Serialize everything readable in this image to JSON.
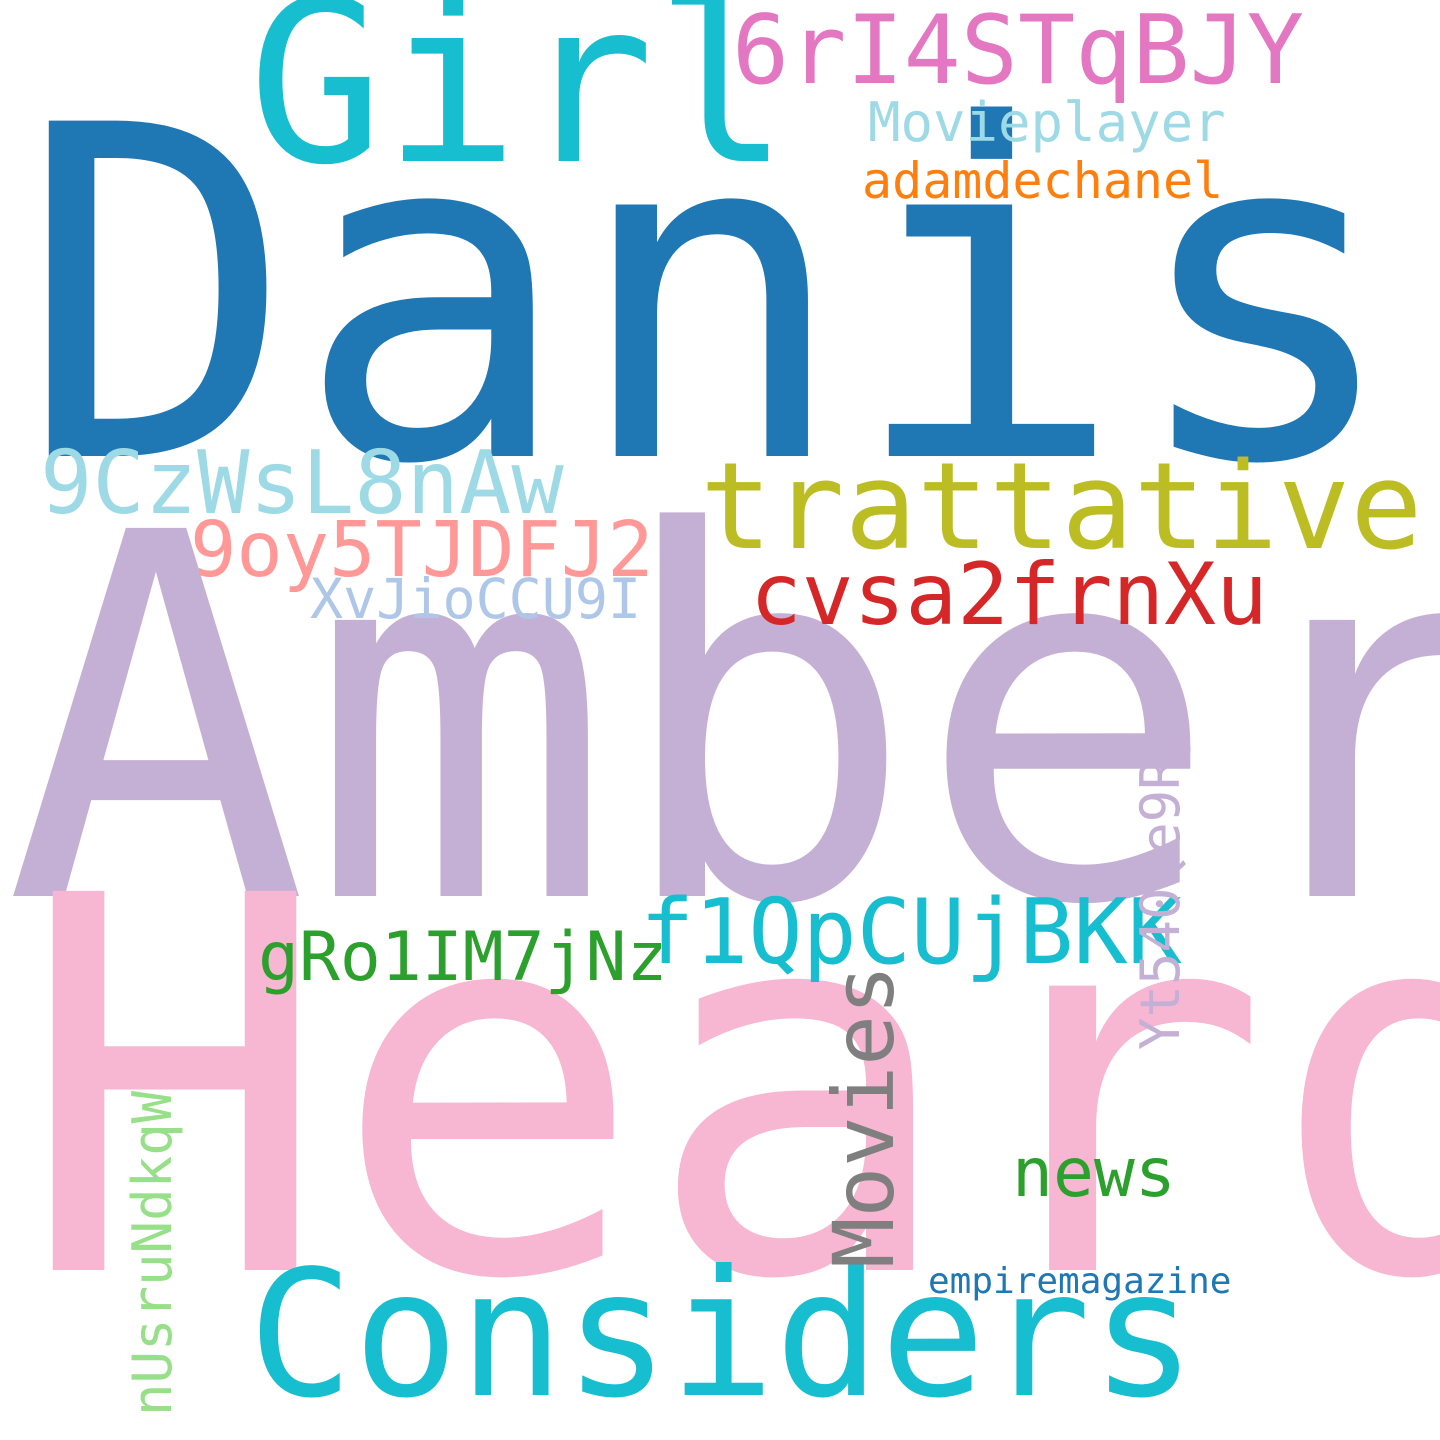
{
  "words": [
    {
      "id": "danish",
      "text": "Danish",
      "color": "#1f77b4"
    },
    {
      "id": "amber",
      "text": "Amber",
      "color": "#c5b0d5"
    },
    {
      "id": "heard",
      "text": "Heard",
      "color": "#f7b6d2"
    },
    {
      "id": "girl",
      "text": "Girl",
      "color": "#17becf"
    },
    {
      "id": "considers",
      "text": "Considers",
      "color": "#17becf"
    },
    {
      "id": "trattative",
      "text": "trattative",
      "color": "#bcbd22"
    },
    {
      "id": "6ri4stqbjy",
      "text": "6rI4STqBJY",
      "color": "#e377c2"
    },
    {
      "id": "movieplayer",
      "text": "Movieplayer",
      "color": "#9edae5"
    },
    {
      "id": "adamdechanel",
      "text": "adamdechanel",
      "color": "#ff7f0e"
    },
    {
      "id": "9czwsl8naw",
      "text": "9CzWsL8nAw",
      "color": "#9edae5"
    },
    {
      "id": "9oy5tjdfj2",
      "text": "9oy5TJDFJ2",
      "color": "#ff9896"
    },
    {
      "id": "cvsa2frnxu",
      "text": "cvsa2frnXu",
      "color": "#d62728"
    },
    {
      "id": "xvjioccu9i",
      "text": "XvJioCCU9I",
      "color": "#aec7e8"
    },
    {
      "id": "f1qpcujbkk",
      "text": "f1QpCUjBKK",
      "color": "#17becf"
    },
    {
      "id": "gro1im7jnz",
      "text": "gRo1IM7jNz",
      "color": "#2ca02c"
    },
    {
      "id": "movies",
      "text": "Movies",
      "color": "#7f7f7f"
    },
    {
      "id": "yt540qe9ry",
      "text": "Yt540Qe9Ry",
      "color": "#c5b0d5"
    },
    {
      "id": "news",
      "text": "news",
      "color": "#2ca02c"
    },
    {
      "id": "nusrundkqw",
      "text": "nUsruNdkqW",
      "color": "#98df8a"
    },
    {
      "id": "empiremagazine",
      "text": "empiremagazine",
      "color": "#1f77b4"
    }
  ]
}
